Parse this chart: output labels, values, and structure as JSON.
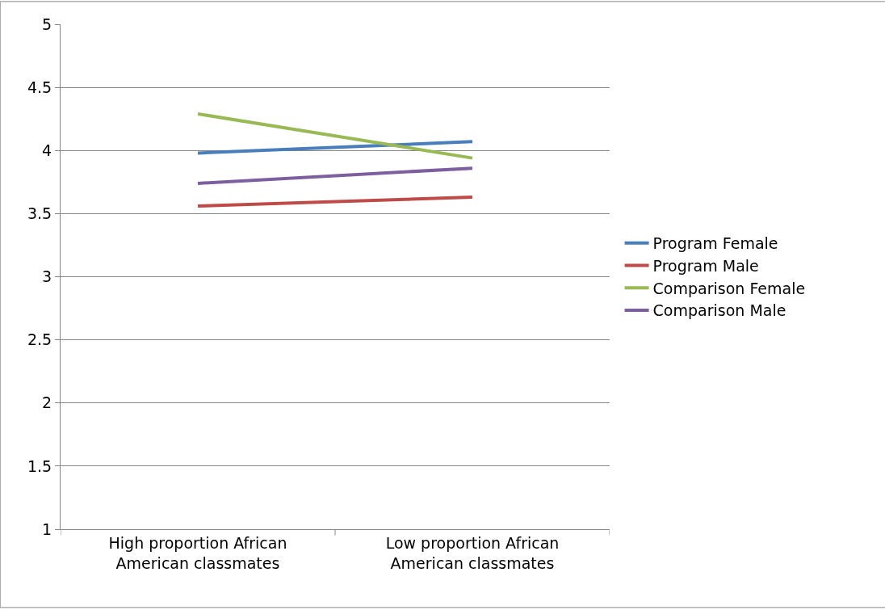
{
  "chart_data": {
    "type": "line",
    "categories": [
      "High proportion African American classmates",
      "Low proportion African American classmates"
    ],
    "series": [
      {
        "name": "Program Female",
        "color": "#4a7ebb",
        "values": [
          3.98,
          4.07
        ]
      },
      {
        "name": "Program Male",
        "color": "#be4b48",
        "values": [
          3.56,
          3.63
        ]
      },
      {
        "name": "Comparison Female",
        "color": "#98b954",
        "values": [
          4.29,
          3.94
        ]
      },
      {
        "name": "Comparison Male",
        "color": "#7d5fa0",
        "values": [
          3.74,
          3.86
        ]
      }
    ],
    "ylim": [
      1,
      5
    ],
    "yticks": [
      1,
      1.5,
      2,
      2.5,
      3,
      3.5,
      4,
      4.5,
      5
    ],
    "grid": "y",
    "legend": "right",
    "marker": "none",
    "line_style": "solid"
  }
}
